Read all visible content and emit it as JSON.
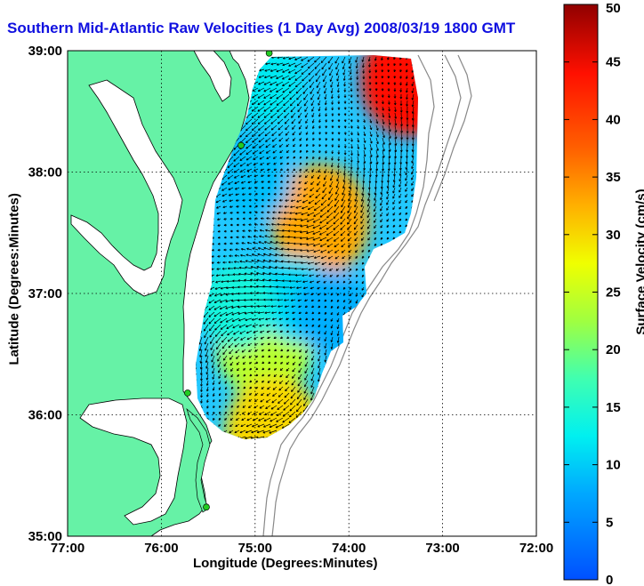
{
  "title": "Southern Mid-Atlantic Raw Velocities (1 Day Avg) 2008/03/19 1800 GMT",
  "xlabel": "Longitude (Degrees:Minutes)",
  "ylabel": "Latitude (Degrees:Minutes)",
  "colorbar": {
    "label": "Surface Velocity (cm/s)",
    "range": [
      0,
      50
    ],
    "ticks": [
      "0",
      "5",
      "10",
      "15",
      "20",
      "25",
      "30",
      "35",
      "40",
      "45",
      "50"
    ]
  },
  "axes": {
    "x_ticks": [
      "77:00",
      "76:00",
      "75:00",
      "74:00",
      "73:00",
      "72:00"
    ],
    "y_ticks": [
      "39:00",
      "38:00",
      "37:00",
      "36:00",
      "35:00"
    ],
    "lon_range": [
      -77,
      -72
    ],
    "lat_range": [
      35,
      39
    ],
    "grid": "dotted"
  },
  "colors": {
    "land": "#66f2a6",
    "ocean": "#ffffff",
    "coastline": "#000000",
    "bathymetry": "#888888",
    "title": "#1010e0",
    "station": "#22cc22"
  },
  "stations": [
    {
      "lon": -74.85,
      "lat": 38.98
    },
    {
      "lon": -75.15,
      "lat": 38.22
    },
    {
      "lon": -75.72,
      "lat": 36.18
    },
    {
      "lon": -75.52,
      "lat": 35.24
    }
  ],
  "velocity_field": {
    "patches": [
      {
        "lon": -74.3,
        "lat": 37.6,
        "speed": 33
      },
      {
        "lon": -73.35,
        "lat": 38.76,
        "speed": 44
      },
      {
        "lon": -74.9,
        "lat": 36.6,
        "speed": 24
      },
      {
        "lon": -74.8,
        "lat": 35.85,
        "speed": 30
      },
      {
        "lon": -75.0,
        "lat": 37.95,
        "speed": 9
      },
      {
        "lon": -74.55,
        "lat": 36.95,
        "speed": 11
      },
      {
        "lon": -74.2,
        "lat": 36.85,
        "speed": 8
      },
      {
        "lon": -74.9,
        "lat": 38.75,
        "speed": 12
      },
      {
        "lon": -75.2,
        "lat": 36.9,
        "speed": 14
      }
    ]
  }
}
